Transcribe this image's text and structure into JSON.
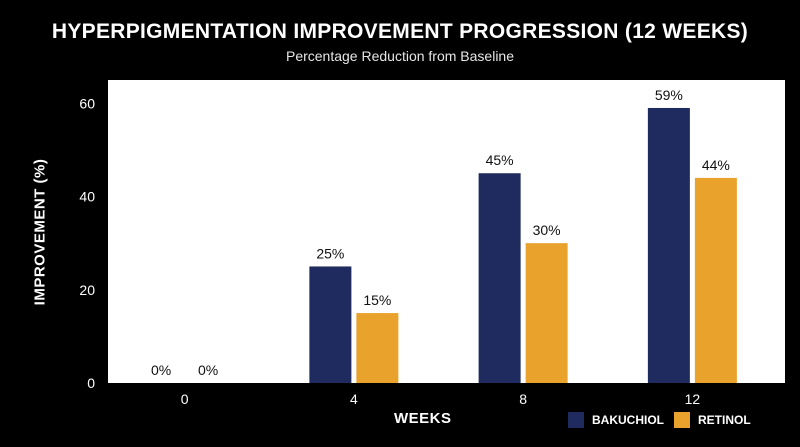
{
  "chart_data": {
    "type": "bar",
    "title": "HYPERPIGMENTATION IMPROVEMENT PROGRESSION (12 WEEKS)",
    "subtitle": "Percentage Reduction from Baseline",
    "xlabel": "WEEKS",
    "ylabel": "IMPROVEMENT (%)",
    "categories": [
      "0",
      "4",
      "8",
      "12"
    ],
    "ylim": [
      0,
      65
    ],
    "yticks": [
      0,
      20,
      40,
      60
    ],
    "grid": false,
    "legend_position": "bottom-right",
    "series": [
      {
        "name": "BAKUCHIOL",
        "color": "#1f2a5e",
        "values": [
          0,
          25,
          45,
          59
        ],
        "labels": [
          "0%",
          "25%",
          "45%",
          "59%"
        ]
      },
      {
        "name": "RETINOL",
        "color": "#e9a22b",
        "values": [
          0,
          15,
          30,
          44
        ],
        "labels": [
          "0%",
          "15%",
          "30%",
          "44%"
        ]
      }
    ]
  }
}
